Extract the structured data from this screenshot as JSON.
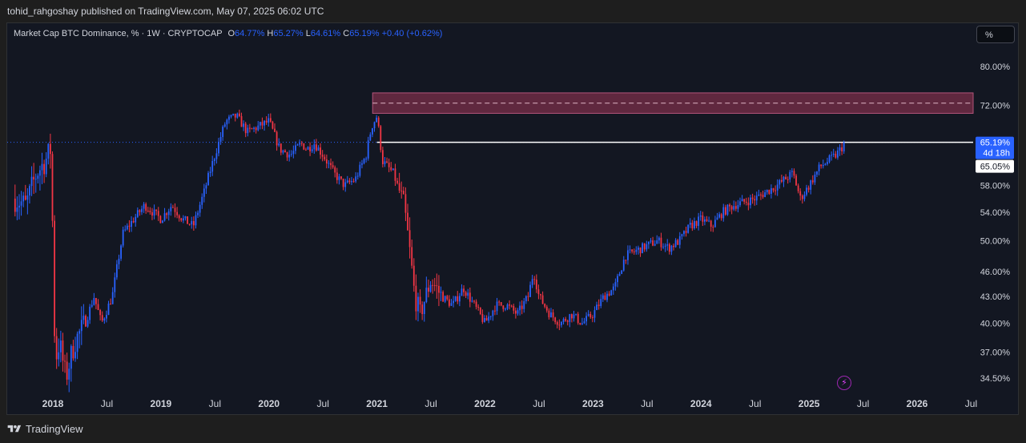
{
  "header": {
    "publisher_line": "tohid_rahgoshay published on TradingView.com, May 07, 2025 06:02 UTC"
  },
  "legend": {
    "symbol": "Market Cap BTC Dominance, % · 1W · CRYPTOCAP",
    "o_label": "O",
    "o_value": "64.77%",
    "h_label": "H",
    "h_value": "65.27%",
    "l_label": "L",
    "l_value": "64.61%",
    "c_label": "C",
    "c_value": "65.19%",
    "change": "+0.40 (+0.62%)"
  },
  "toolbar": {
    "scale_button": "%"
  },
  "footer": {
    "brand": "TradingView"
  },
  "colors": {
    "up": "#2962ff",
    "down": "#f23645",
    "zone": "#7b2f4a",
    "background": "#131722"
  },
  "chart_data": {
    "type": "candlestick",
    "interval": "1W",
    "y_scale": "log",
    "x_range": [
      "2017-09",
      "2026-07"
    ],
    "y_ticks": [
      "80.00%",
      "72.00%",
      "58.00%",
      "54.00%",
      "50.00%",
      "46.00%",
      "43.00%",
      "40.00%",
      "37.00%",
      "34.50%"
    ],
    "y_tick_values": [
      80,
      72,
      58,
      54,
      50,
      46,
      43,
      40,
      37,
      34.5
    ],
    "x_ticks": [
      {
        "label": "2018",
        "date": 2018.0,
        "bold": true
      },
      {
        "label": "Jul",
        "date": 2018.5
      },
      {
        "label": "2019",
        "date": 2019.0,
        "bold": true
      },
      {
        "label": "Jul",
        "date": 2019.5
      },
      {
        "label": "2020",
        "date": 2020.0,
        "bold": true
      },
      {
        "label": "Jul",
        "date": 2020.5
      },
      {
        "label": "2021",
        "date": 2021.0,
        "bold": true
      },
      {
        "label": "Jul",
        "date": 2021.5
      },
      {
        "label": "2022",
        "date": 2022.0,
        "bold": true
      },
      {
        "label": "Jul",
        "date": 2022.5
      },
      {
        "label": "2023",
        "date": 2023.0,
        "bold": true
      },
      {
        "label": "Jul",
        "date": 2023.5
      },
      {
        "label": "2024",
        "date": 2024.0,
        "bold": true
      },
      {
        "label": "Jul",
        "date": 2024.5
      },
      {
        "label": "2025",
        "date": 2025.0,
        "bold": true
      },
      {
        "label": "Jul",
        "date": 2025.5
      },
      {
        "label": "2026",
        "date": 2026.0,
        "bold": true
      },
      {
        "label": "Jul",
        "date": 2026.5
      }
    ],
    "price_path": [
      [
        2017.65,
        56
      ],
      [
        2017.75,
        55
      ],
      [
        2017.85,
        60
      ],
      [
        2017.93,
        62
      ],
      [
        2017.98,
        64
      ],
      [
        2018.02,
        36
      ],
      [
        2018.06,
        38
      ],
      [
        2018.12,
        34.5
      ],
      [
        2018.2,
        38
      ],
      [
        2018.3,
        40
      ],
      [
        2018.38,
        43
      ],
      [
        2018.45,
        40
      ],
      [
        2018.55,
        43
      ],
      [
        2018.65,
        51
      ],
      [
        2018.75,
        53
      ],
      [
        2018.85,
        55
      ],
      [
        2019.0,
        53
      ],
      [
        2019.1,
        55
      ],
      [
        2019.2,
        53
      ],
      [
        2019.3,
        52
      ],
      [
        2019.4,
        57
      ],
      [
        2019.5,
        63
      ],
      [
        2019.6,
        69
      ],
      [
        2019.7,
        70
      ],
      [
        2019.8,
        67
      ],
      [
        2019.9,
        68
      ],
      [
        2020.0,
        69
      ],
      [
        2020.1,
        64
      ],
      [
        2020.2,
        63
      ],
      [
        2020.3,
        65
      ],
      [
        2020.35,
        64
      ],
      [
        2020.42,
        65
      ],
      [
        2020.5,
        63
      ],
      [
        2020.6,
        60
      ],
      [
        2020.7,
        58
      ],
      [
        2020.8,
        59
      ],
      [
        2020.9,
        63
      ],
      [
        2020.95,
        68
      ],
      [
        2021.0,
        70
      ],
      [
        2021.05,
        62
      ],
      [
        2021.15,
        60
      ],
      [
        2021.25,
        55
      ],
      [
        2021.35,
        43
      ],
      [
        2021.4,
        41
      ],
      [
        2021.5,
        45
      ],
      [
        2021.6,
        43
      ],
      [
        2021.7,
        42
      ],
      [
        2021.8,
        44
      ],
      [
        2021.9,
        42
      ],
      [
        2022.0,
        40
      ],
      [
        2022.1,
        42
      ],
      [
        2022.2,
        42
      ],
      [
        2022.3,
        41
      ],
      [
        2022.4,
        43
      ],
      [
        2022.45,
        46
      ],
      [
        2022.5,
        43
      ],
      [
        2022.6,
        41
      ],
      [
        2022.7,
        40
      ],
      [
        2022.8,
        41
      ],
      [
        2022.9,
        40
      ],
      [
        2023.0,
        41
      ],
      [
        2023.1,
        43
      ],
      [
        2023.2,
        44
      ],
      [
        2023.3,
        48
      ],
      [
        2023.45,
        49
      ],
      [
        2023.6,
        50
      ],
      [
        2023.7,
        49
      ],
      [
        2023.8,
        50
      ],
      [
        2023.9,
        52
      ],
      [
        2024.0,
        53
      ],
      [
        2024.1,
        52
      ],
      [
        2024.2,
        54
      ],
      [
        2024.3,
        55
      ],
      [
        2024.5,
        56
      ],
      [
        2024.6,
        57
      ],
      [
        2024.7,
        58
      ],
      [
        2024.85,
        60
      ],
      [
        2024.92,
        56
      ],
      [
        2025.0,
        58
      ],
      [
        2025.1,
        61
      ],
      [
        2025.25,
        63
      ],
      [
        2025.34,
        65.19
      ]
    ],
    "resistance_zone": {
      "from_date": 2020.96,
      "to_date": 2026.85,
      "low": 70.5,
      "high": 74.5
    },
    "horizontal_line": {
      "from_date": 2021.0,
      "value": 65.19
    },
    "current_price_label": "65.19%",
    "countdown_label": "4d 18h",
    "secondary_price_label": "65.05%"
  }
}
